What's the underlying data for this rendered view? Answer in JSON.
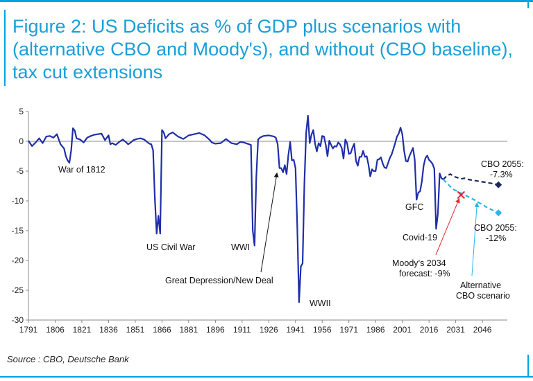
{
  "title": "Figure 2: US Deficits as % of GDP plus scenarios with (alternative CBO and Moody's), and without (CBO baseline), tax cut extensions",
  "source": "Source : CBO, Deutsche Bank",
  "colors": {
    "accent": "#00a3e0",
    "historical": "#1f2ea8",
    "cbo_baseline": "#1a2a5e",
    "alternative": "#29b6e8",
    "moodys": "#e8242a"
  },
  "chart_data": {
    "type": "line",
    "title": "Figure 2: US Deficits as % of GDP plus scenarios with (alternative CBO and Moody's), and without (CBO baseline), tax cut extensions",
    "xlabel": "",
    "ylabel": "",
    "xlim": [
      1791,
      2060
    ],
    "ylim": [
      -30,
      5
    ],
    "x_ticks": [
      1791,
      1806,
      1821,
      1836,
      1851,
      1866,
      1881,
      1896,
      1911,
      1926,
      1941,
      1956,
      1971,
      1986,
      2001,
      2016,
      2031,
      2046
    ],
    "y_ticks": [
      5,
      0,
      -5,
      -10,
      -15,
      -20,
      -25,
      -30
    ],
    "grid": false,
    "series": [
      {
        "name": "",
        "style": "solid",
        "x": [
          1791,
          1793,
          1795,
          1797,
          1799,
          1801,
          1803,
          1805,
          1807,
          1809,
          1811,
          1812,
          1813,
          1814,
          1815,
          1816,
          1817,
          1818,
          1820,
          1822,
          1824,
          1826,
          1828,
          1830,
          1832,
          1834,
          1836,
          1837,
          1838,
          1840,
          1842,
          1844,
          1846,
          1847,
          1848,
          1850,
          1852,
          1854,
          1856,
          1858,
          1859,
          1860,
          1861,
          1862,
          1863,
          1864,
          1865,
          1866,
          1867,
          1868,
          1870,
          1872,
          1875,
          1878,
          1881,
          1884,
          1887,
          1890,
          1893,
          1894,
          1896,
          1899,
          1902,
          1905,
          1908,
          1910,
          1912,
          1914,
          1916,
          1917,
          1918,
          1919,
          1920,
          1921,
          1923,
          1926,
          1929,
          1930,
          1931,
          1932,
          1933,
          1934,
          1935,
          1936,
          1937,
          1938,
          1939,
          1940,
          1941,
          1942,
          1943,
          1944,
          1945,
          1946,
          1947,
          1948,
          1949,
          1950,
          1951,
          1952,
          1953,
          1954,
          1955,
          1956,
          1957,
          1958,
          1959,
          1960,
          1961,
          1962,
          1963,
          1964,
          1965,
          1966,
          1967,
          1968,
          1969,
          1970,
          1971,
          1972,
          1973,
          1974,
          1975,
          1976,
          1977,
          1978,
          1979,
          1980,
          1981,
          1982,
          1983,
          1984,
          1985,
          1986,
          1987,
          1988,
          1989,
          1990,
          1991,
          1992,
          1993,
          1994,
          1995,
          1996,
          1997,
          1998,
          1999,
          2000,
          2001,
          2002,
          2003,
          2004,
          2005,
          2006,
          2007,
          2008,
          2009,
          2010,
          2011,
          2012,
          2013,
          2014,
          2015,
          2016,
          2017,
          2018,
          2019,
          2020,
          2021,
          2022,
          2023,
          2024
        ],
        "y": [
          0.1,
          -0.8,
          -0.2,
          0.5,
          -0.3,
          0.8,
          0.9,
          0.6,
          1.2,
          -0.5,
          -1.2,
          -2.5,
          -3.2,
          -3.6,
          -1.5,
          2.2,
          1.8,
          0.5,
          0.3,
          -0.2,
          0.6,
          0.9,
          1.1,
          1.2,
          1.3,
          0.2,
          1.0,
          -0.5,
          -0.3,
          -0.6,
          -0.1,
          0.3,
          -0.2,
          -0.5,
          -0.3,
          0.2,
          0.4,
          0.5,
          0.3,
          -0.2,
          -0.4,
          -0.5,
          -1.5,
          -9.5,
          -15.5,
          -12.5,
          -15.5,
          1.9,
          1.5,
          0.5,
          1.2,
          1.5,
          0.8,
          0.4,
          1.0,
          1.2,
          1.4,
          1.0,
          0.2,
          -0.2,
          -0.4,
          -0.3,
          0.4,
          -0.3,
          -0.5,
          -0.1,
          -0.2,
          -0.4,
          -0.6,
          -15.0,
          -17.5,
          -6.0,
          0.3,
          0.6,
          0.9,
          1.0,
          0.8,
          0.6,
          -0.5,
          -4.5,
          -4.5,
          -5.2,
          -4.0,
          -5.5,
          -2.3,
          -0.1,
          -3.2,
          -3.1,
          -4.5,
          -14.2,
          -27.0,
          -21.0,
          -20.5,
          -7.0,
          1.4,
          4.3,
          -0.3,
          1.1,
          1.9,
          -0.4,
          -1.7,
          -0.3,
          -0.8,
          0.9,
          0.8,
          -0.6,
          -2.5,
          0.1,
          -0.6,
          -1.2,
          -0.8,
          -0.9,
          -0.2,
          -0.5,
          -1.1,
          -2.9,
          0.3,
          -0.3,
          -2.1,
          -2.0,
          -1.1,
          -0.4,
          -3.3,
          -4.1,
          -2.6,
          -2.6,
          -1.6,
          -2.6,
          -2.5,
          -3.9,
          -5.9,
          -4.7,
          -5.0,
          -5.0,
          -3.1,
          -3.0,
          -2.7,
          -3.7,
          -4.4,
          -4.5,
          -3.7,
          -2.8,
          -2.2,
          -1.3,
          -0.3,
          0.8,
          1.3,
          2.3,
          1.2,
          -1.5,
          -3.3,
          -3.4,
          -2.5,
          -1.8,
          -1.1,
          -3.1,
          -9.8,
          -8.6,
          -8.4,
          -6.7,
          -4.1,
          -2.8,
          -2.4,
          -3.1,
          -3.4,
          -3.8,
          -4.6,
          -14.7,
          -12.1,
          -5.4,
          -6.2,
          -6.4
        ]
      },
      {
        "name": "",
        "style": "dashed",
        "x": [
          2024,
          2026,
          2028,
          2030,
          2032,
          2034,
          2036,
          2038,
          2040,
          2042,
          2044,
          2046,
          2048,
          2050,
          2052,
          2055
        ],
        "y": [
          -6.4,
          -5.8,
          -5.5,
          -5.9,
          -6.1,
          -6.3,
          -6.2,
          -6.4,
          -6.5,
          -6.6,
          -6.7,
          -6.8,
          -6.9,
          -7.0,
          -7.1,
          -7.3
        ]
      },
      {
        "name": "",
        "style": "dashed",
        "x": [
          2024,
          2026,
          2028,
          2030,
          2032,
          2034,
          2036,
          2038,
          2040,
          2042,
          2044,
          2046,
          2048,
          2050,
          2052,
          2055
        ],
        "y": [
          -6.4,
          -7.0,
          -7.6,
          -8.1,
          -8.4,
          -8.7,
          -9.0,
          -9.3,
          -9.6,
          -9.9,
          -10.3,
          -10.6,
          -11.0,
          -11.3,
          -11.6,
          -12.0
        ]
      }
    ],
    "markers": [
      {
        "x": 2055,
        "y": -7.3,
        "shape": "diamond",
        "color": "#1a2a5e"
      },
      {
        "x": 2055,
        "y": -12,
        "shape": "diamond",
        "color": "#29b6e8"
      },
      {
        "x": 2034,
        "y": -9,
        "shape": "x",
        "color": "#e8242a"
      }
    ],
    "annotations": [
      {
        "text": "War of 1812",
        "color": "#111"
      },
      {
        "text": "US Civil War",
        "color": "#111"
      },
      {
        "text": "WWI",
        "color": "#111"
      },
      {
        "text": "Great Depression/New Deal",
        "color": "#111"
      },
      {
        "text": "WWII",
        "color": "#111"
      },
      {
        "text": "GFC",
        "color": "#111"
      },
      {
        "text": "Covid-19",
        "color": "#111"
      },
      {
        "text": "CBO 2055:",
        "color": "#1a2a5e"
      },
      {
        "text": "-7.3%",
        "color": "#1a2a5e"
      },
      {
        "text": "CBO 2055:",
        "color": "#29b6e8"
      },
      {
        "text": "-12%",
        "color": "#29b6e8"
      },
      {
        "text": "Moody’s 2034",
        "color": "#e8242a"
      },
      {
        "text": "forecast: -9%",
        "color": "#e8242a"
      },
      {
        "text": "Alternative",
        "color": "#29b6e8"
      },
      {
        "text": "CBO scenario",
        "color": "#29b6e8"
      }
    ]
  }
}
